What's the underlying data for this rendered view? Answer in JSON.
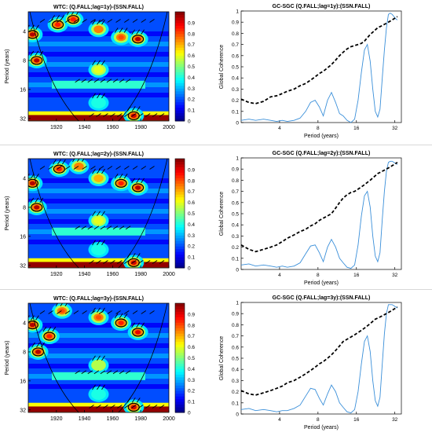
{
  "chart_data": [
    {
      "type": "heatmap",
      "title": "WTC: (Q.FALL;lag=1y)-(SSN.FALL)",
      "ylabel": "Period (years)",
      "x_ticks": [
        "1920",
        "1940",
        "1960",
        "1980",
        "2000"
      ],
      "y_ticks": [
        "4",
        "8",
        "16",
        "32"
      ],
      "colorbar_ticks": [
        "0",
        "0.1",
        "0.2",
        "0.3",
        "0.4",
        "0.5",
        "0.6",
        "0.7",
        "0.8",
        "0.9"
      ],
      "xlim": [
        1900,
        2000
      ],
      "colorbar_range": [
        0,
        1
      ],
      "colormap": "jet",
      "blobs": [
        {
          "year": 1903,
          "period": 4.3,
          "power": 0.95
        },
        {
          "year": 1906,
          "period": 8.0,
          "power": 0.95
        },
        {
          "year": 1921,
          "period": 3.4,
          "power": 0.85
        },
        {
          "year": 1932,
          "period": 3.0,
          "power": 0.85
        },
        {
          "year": 1950,
          "period": 3.8,
          "power": 0.75
        },
        {
          "year": 1966,
          "period": 4.6,
          "power": 0.8
        },
        {
          "year": 1978,
          "period": 4.8,
          "power": 0.95
        },
        {
          "year": 1950,
          "period": 10.0,
          "power": 0.6
        },
        {
          "year": 1950,
          "period": 22.0,
          "power": 0.4
        },
        {
          "year": 1975,
          "period": 30.0,
          "power": 0.92
        }
      ]
    },
    {
      "type": "line",
      "title": "GC-SGC (Q.FALL;lag=1y):(SSN.FALL)",
      "xlabel": "Period (years)",
      "ylabel": "Global Coherence",
      "x_scale": "log2",
      "xlim": [
        2,
        36
      ],
      "ylim": [
        0,
        1
      ],
      "x_ticks": [
        "4",
        "8",
        "16",
        "32"
      ],
      "y_ticks": [
        "0",
        "0.1",
        "0.2",
        "0.3",
        "0.4",
        "0.5",
        "0.6",
        "0.7",
        "0.8",
        "0.9",
        "1"
      ],
      "x": [
        2,
        2.3,
        2.6,
        3,
        3.4,
        3.8,
        4.2,
        4.6,
        5.2,
        5.8,
        6.4,
        7,
        7.6,
        8.2,
        8.8,
        9.5,
        10.2,
        11,
        11.8,
        12.6,
        13.5,
        14.5,
        15.5,
        16.5,
        17.5,
        18.5,
        19.5,
        20.5,
        21.5,
        22.5,
        23.5,
        24.5,
        25.5,
        26.5,
        27.5,
        28.5,
        29.5,
        30.5,
        31.5,
        32.5,
        33.5
      ],
      "series": [
        {
          "values": [
            0.02,
            0.03,
            0.02,
            0.03,
            0.02,
            0.01,
            0.02,
            0.01,
            0.02,
            0.04,
            0.1,
            0.18,
            0.2,
            0.14,
            0.06,
            0.2,
            0.27,
            0.18,
            0.08,
            0.06,
            0.02,
            0.0,
            0.03,
            0.2,
            0.45,
            0.65,
            0.7,
            0.55,
            0.3,
            0.1,
            0.05,
            0.12,
            0.4,
            0.65,
            0.85,
            0.97,
            0.98,
            0.97,
            0.95,
            0.93,
            0.92
          ]
        },
        {
          "values": [
            0.21,
            0.18,
            0.17,
            0.19,
            0.23,
            0.24,
            0.26,
            0.28,
            0.3,
            0.33,
            0.35,
            0.38,
            0.41,
            0.44,
            0.46,
            0.49,
            0.52,
            0.56,
            0.6,
            0.63,
            0.66,
            0.68,
            0.69,
            0.7,
            0.71,
            0.73,
            0.76,
            0.79,
            0.81,
            0.83,
            0.85,
            0.86,
            0.87,
            0.88,
            0.89,
            0.9,
            0.91,
            0.92,
            0.93,
            0.94,
            0.95
          ]
        }
      ]
    },
    {
      "type": "heatmap",
      "title": "WTC: (Q.FALL;lag=2y)-(SSN.FALL)",
      "ylabel": "Period (years)",
      "x_ticks": [
        "1920",
        "1940",
        "1960",
        "1980",
        "2000"
      ],
      "y_ticks": [
        "4",
        "8",
        "16",
        "32"
      ],
      "colorbar_ticks": [
        "0",
        "0.1",
        "0.2",
        "0.3",
        "0.4",
        "0.5",
        "0.6",
        "0.7",
        "0.8",
        "0.9"
      ],
      "xlim": [
        1900,
        2000
      ],
      "colorbar_range": [
        0,
        1
      ],
      "colormap": "jet",
      "blobs": [
        {
          "year": 1903,
          "period": 4.5,
          "power": 0.95
        },
        {
          "year": 1906,
          "period": 8.0,
          "power": 0.95
        },
        {
          "year": 1922,
          "period": 3.2,
          "power": 0.85
        },
        {
          "year": 1936,
          "period": 3.0,
          "power": 0.75
        },
        {
          "year": 1950,
          "period": 4.0,
          "power": 0.7
        },
        {
          "year": 1966,
          "period": 4.5,
          "power": 0.85
        },
        {
          "year": 1978,
          "period": 5.0,
          "power": 0.95
        },
        {
          "year": 1950,
          "period": 11.0,
          "power": 0.6
        },
        {
          "year": 1950,
          "period": 22.0,
          "power": 0.4
        },
        {
          "year": 1975,
          "period": 30.0,
          "power": 0.92
        }
      ]
    },
    {
      "type": "line",
      "title": "GC-SGC (Q.FALL;lag=2y):(SSN.FALL)",
      "xlabel": "Period (years)",
      "ylabel": "Global Coherence",
      "x_scale": "log2",
      "xlim": [
        2,
        36
      ],
      "ylim": [
        0,
        1
      ],
      "x_ticks": [
        "4",
        "8",
        "16",
        "32"
      ],
      "y_ticks": [
        "0",
        "0.1",
        "0.2",
        "0.3",
        "0.4",
        "0.5",
        "0.6",
        "0.7",
        "0.8",
        "0.9",
        "1"
      ],
      "x": [
        2,
        2.3,
        2.6,
        3,
        3.4,
        3.8,
        4.2,
        4.6,
        5.2,
        5.8,
        6.4,
        7,
        7.6,
        8.2,
        8.8,
        9.5,
        10.2,
        11,
        11.8,
        12.6,
        13.5,
        14.5,
        15.5,
        16.5,
        17.5,
        18.5,
        19.5,
        20.5,
        21.5,
        22.5,
        23.5,
        24.5,
        25.5,
        26.5,
        27.5,
        28.5,
        29.5,
        30.5,
        31.5,
        32.5,
        33.5
      ],
      "series": [
        {
          "values": [
            0.04,
            0.05,
            0.03,
            0.04,
            0.03,
            0.02,
            0.03,
            0.02,
            0.03,
            0.06,
            0.14,
            0.21,
            0.22,
            0.15,
            0.07,
            0.2,
            0.27,
            0.2,
            0.1,
            0.06,
            0.02,
            0.01,
            0.04,
            0.22,
            0.48,
            0.66,
            0.7,
            0.56,
            0.3,
            0.12,
            0.07,
            0.15,
            0.45,
            0.7,
            0.88,
            0.96,
            0.97,
            0.97,
            0.96,
            0.95,
            0.94
          ]
        },
        {
          "values": [
            0.22,
            0.18,
            0.16,
            0.18,
            0.2,
            0.22,
            0.25,
            0.28,
            0.31,
            0.34,
            0.36,
            0.39,
            0.41,
            0.44,
            0.46,
            0.48,
            0.5,
            0.55,
            0.6,
            0.64,
            0.67,
            0.69,
            0.7,
            0.72,
            0.74,
            0.76,
            0.78,
            0.8,
            0.82,
            0.84,
            0.86,
            0.87,
            0.88,
            0.89,
            0.9,
            0.91,
            0.92,
            0.93,
            0.94,
            0.95,
            0.96
          ]
        }
      ]
    },
    {
      "type": "heatmap",
      "title": "WTC: (Q.FALL;lag=3y)-(SSN.FALL)",
      "ylabel": "Period (years)",
      "x_ticks": [
        "1920",
        "1940",
        "1960",
        "1980",
        "2000"
      ],
      "y_ticks": [
        "4",
        "8",
        "16",
        "32"
      ],
      "colorbar_ticks": [
        "0",
        "0.1",
        "0.2",
        "0.3",
        "0.4",
        "0.5",
        "0.6",
        "0.7",
        "0.8",
        "0.9"
      ],
      "xlim": [
        1900,
        2000
      ],
      "colorbar_range": [
        0,
        1
      ],
      "colormap": "jet",
      "blobs": [
        {
          "year": 1903,
          "period": 4.2,
          "power": 0.95
        },
        {
          "year": 1907,
          "period": 8.0,
          "power": 0.95
        },
        {
          "year": 1915,
          "period": 5.5,
          "power": 0.85
        },
        {
          "year": 1924,
          "period": 3.0,
          "power": 0.8
        },
        {
          "year": 1950,
          "period": 3.5,
          "power": 0.8
        },
        {
          "year": 1966,
          "period": 4.0,
          "power": 0.85
        },
        {
          "year": 1978,
          "period": 5.0,
          "power": 0.9
        },
        {
          "year": 1950,
          "period": 11.0,
          "power": 0.55
        },
        {
          "year": 1950,
          "period": 22.0,
          "power": 0.4
        },
        {
          "year": 1975,
          "period": 30.0,
          "power": 0.92
        }
      ]
    },
    {
      "type": "line",
      "title": "GC-SGC (Q.FALL;lag=3y):(SSN.FALL)",
      "xlabel": "Period (years)",
      "ylabel": "Global Coherence",
      "x_scale": "log2",
      "xlim": [
        2,
        36
      ],
      "ylim": [
        0,
        1
      ],
      "x_ticks": [
        "4",
        "8",
        "16",
        "32"
      ],
      "y_ticks": [
        "0",
        "0.1",
        "0.2",
        "0.3",
        "0.4",
        "0.5",
        "0.6",
        "0.7",
        "0.8",
        "0.9",
        "1"
      ],
      "x": [
        2,
        2.3,
        2.6,
        3,
        3.4,
        3.8,
        4.2,
        4.6,
        5.2,
        5.8,
        6.4,
        7,
        7.6,
        8.2,
        8.8,
        9.5,
        10.2,
        11,
        11.8,
        12.6,
        13.5,
        14.5,
        15.5,
        16.5,
        17.5,
        18.5,
        19.5,
        20.5,
        21.5,
        22.5,
        23.5,
        24.5,
        25.5,
        26.5,
        27.5,
        28.5,
        29.5,
        30.5,
        31.5,
        32.5,
        33.5
      ],
      "series": [
        {
          "values": [
            0.04,
            0.05,
            0.03,
            0.04,
            0.03,
            0.02,
            0.03,
            0.03,
            0.05,
            0.08,
            0.16,
            0.23,
            0.22,
            0.14,
            0.08,
            0.18,
            0.26,
            0.2,
            0.1,
            0.06,
            0.02,
            0.01,
            0.04,
            0.2,
            0.45,
            0.65,
            0.7,
            0.56,
            0.3,
            0.12,
            0.07,
            0.15,
            0.45,
            0.72,
            0.9,
            0.98,
            0.98,
            0.98,
            0.97,
            0.96,
            0.95
          ]
        },
        {
          "values": [
            0.21,
            0.18,
            0.17,
            0.19,
            0.21,
            0.23,
            0.25,
            0.28,
            0.3,
            0.33,
            0.36,
            0.39,
            0.42,
            0.45,
            0.47,
            0.5,
            0.53,
            0.57,
            0.61,
            0.65,
            0.67,
            0.69,
            0.71,
            0.73,
            0.75,
            0.77,
            0.79,
            0.81,
            0.83,
            0.85,
            0.86,
            0.87,
            0.88,
            0.89,
            0.9,
            0.91,
            0.92,
            0.93,
            0.94,
            0.95,
            0.96
          ]
        }
      ]
    }
  ]
}
